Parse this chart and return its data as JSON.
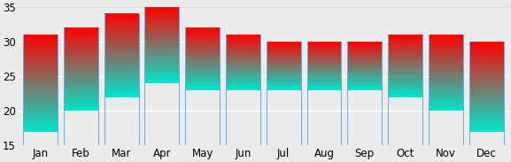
{
  "months": [
    "Jan",
    "Feb",
    "Mar",
    "Apr",
    "May",
    "Jun",
    "Jul",
    "Aug",
    "Sep",
    "Oct",
    "Nov",
    "Dec"
  ],
  "lows": [
    17,
    20,
    22,
    24,
    23,
    23,
    23,
    23,
    23,
    22,
    20,
    17
  ],
  "highs": [
    31,
    32,
    34,
    35,
    32,
    31,
    30,
    30,
    30,
    31,
    31,
    30
  ],
  "ymin": 15,
  "ymax": 35,
  "yticks": [
    15,
    20,
    25,
    30,
    35
  ],
  "bar_width": 0.85,
  "color_low": "#00e5cc",
  "color_high": "#ff0000",
  "bar_edge_color": "#66aadd",
  "background_color": "#ebebeb",
  "plot_bg_color": "#ebebeb",
  "figsize": [
    5.77,
    1.83
  ],
  "dpi": 100
}
